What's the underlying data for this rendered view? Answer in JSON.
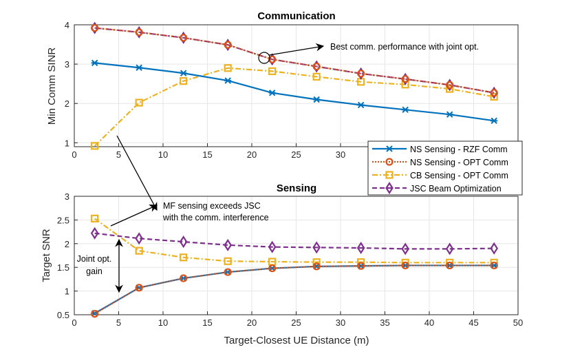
{
  "chart_data": [
    {
      "type": "line",
      "title": "Communication",
      "xlabel": "",
      "ylabel": "Min Comm SINR",
      "xlim": [
        0,
        50
      ],
      "ylim": [
        0.9,
        4
      ],
      "xticks": [
        0,
        5,
        10,
        15,
        20,
        25,
        30
      ],
      "yticks": [
        1,
        2,
        3,
        4
      ],
      "grid": true,
      "x": [
        2.3,
        7.3,
        12.3,
        17.3,
        22.3,
        27.3,
        32.3,
        37.3,
        42.3,
        47.3
      ],
      "series": [
        {
          "name": "NS Sensing - RZF Comm",
          "values": [
            3.03,
            2.91,
            2.77,
            2.58,
            2.27,
            2.1,
            1.96,
            1.84,
            1.72,
            1.56
          ]
        },
        {
          "name": "NS Sensing - OPT Comm",
          "values": [
            3.92,
            3.81,
            3.67,
            3.49,
            3.12,
            2.94,
            2.76,
            2.62,
            2.47,
            2.27
          ]
        },
        {
          "name": "CB Sensing - OPT Comm",
          "values": [
            0.92,
            2.02,
            2.57,
            2.9,
            2.82,
            2.68,
            2.55,
            2.48,
            2.37,
            2.17
          ]
        },
        {
          "name": "JSC Beam Optimization",
          "values": [
            3.92,
            3.81,
            3.67,
            3.49,
            3.12,
            2.94,
            2.76,
            2.62,
            2.47,
            2.27
          ]
        }
      ],
      "annotations": [
        "Best comm. performance with joint opt."
      ]
    },
    {
      "type": "line",
      "title": "Sensing",
      "xlabel": "Target-Closest UE Distance (m)",
      "ylabel": "Target SNR",
      "xlim": [
        0,
        50
      ],
      "ylim": [
        0.5,
        3
      ],
      "xticks": [
        0,
        5,
        10,
        15,
        20,
        25,
        30,
        35,
        40,
        45,
        50
      ],
      "yticks": [
        0.5,
        1,
        1.5,
        2,
        2.5,
        3
      ],
      "grid": true,
      "x": [
        2.3,
        7.3,
        12.3,
        17.3,
        22.3,
        27.3,
        32.3,
        37.3,
        42.3,
        47.3
      ],
      "series": [
        {
          "name": "NS Sensing - RZF Comm",
          "values": [
            0.53,
            1.07,
            1.27,
            1.4,
            1.48,
            1.52,
            1.53,
            1.54,
            1.54,
            1.54
          ]
        },
        {
          "name": "NS Sensing - OPT Comm",
          "values": [
            0.52,
            1.07,
            1.27,
            1.4,
            1.48,
            1.52,
            1.53,
            1.54,
            1.54,
            1.54
          ]
        },
        {
          "name": "CB Sensing - OPT Comm",
          "values": [
            2.53,
            1.85,
            1.71,
            1.63,
            1.62,
            1.61,
            1.61,
            1.6,
            1.6,
            1.6
          ]
        },
        {
          "name": "JSC Beam Optimization",
          "values": [
            2.22,
            2.11,
            2.04,
            1.97,
            1.93,
            1.92,
            1.91,
            1.89,
            1.89,
            1.9
          ]
        }
      ],
      "annotations": [
        "MF sensing exceeds JSC",
        "with the comm. interference",
        "Joint opt.",
        "gain"
      ]
    }
  ],
  "legend": {
    "placement": "right-middle",
    "entries": [
      "NS Sensing - RZF Comm",
      "NS Sensing - OPT Comm",
      "CB Sensing - OPT Comm",
      "JSC Beam Optimization"
    ]
  },
  "colors": {
    "rzf": "#0072BD",
    "nsopt": "#D95319",
    "cb": "#EDB120",
    "jsc": "#7E2F8E"
  }
}
